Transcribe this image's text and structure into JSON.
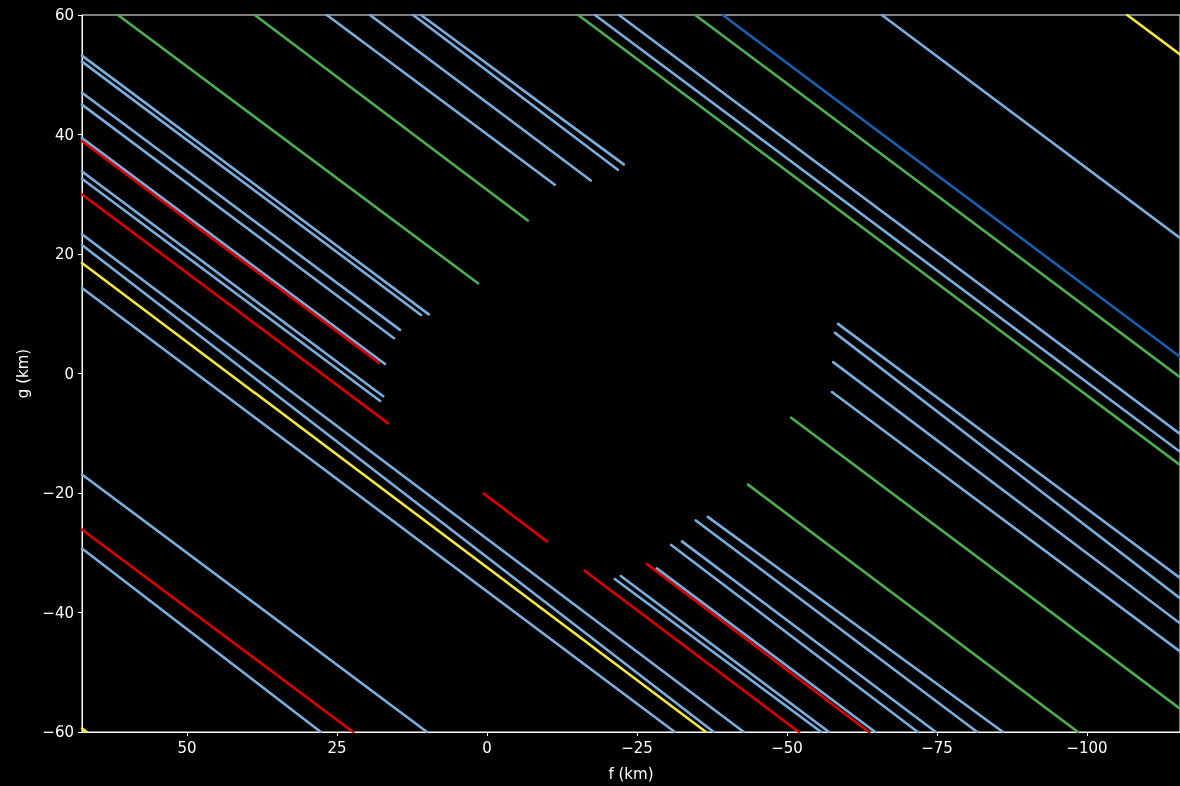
{
  "chart_data": {
    "type": "line",
    "xlabel": "f (km)",
    "ylabel": "g (km)",
    "xlim": [
      67.5,
      -115.5
    ],
    "ylim": [
      -60,
      60
    ],
    "xticks": [
      50,
      25,
      0,
      {
        "value": -25,
        "label": "−25"
      },
      {
        "value": -50,
        "label": "−50"
      },
      {
        "value": -75,
        "label": "−75"
      },
      {
        "value": -100,
        "label": "−100"
      }
    ],
    "yticks": [
      {
        "value": -60,
        "label": "−60"
      },
      {
        "value": -40,
        "label": "−40"
      },
      {
        "value": -20,
        "label": "−20"
      },
      0,
      20,
      40,
      60
    ],
    "series": [
      {
        "color": "#4caf50",
        "x": [
          61.5,
          1.5
        ],
        "values": [
          60,
          15.1
        ]
      },
      {
        "color": "#4caf50",
        "x": [
          38.7,
          -6.8
        ],
        "values": [
          60,
          25.6
        ]
      },
      {
        "color": "#7aaede",
        "x": [
          26.7,
          -11.3
        ],
        "values": [
          60,
          31.6
        ]
      },
      {
        "color": "#7aaede",
        "x": [
          19.5,
          -17.3
        ],
        "values": [
          60,
          32.3
        ]
      },
      {
        "color": "#7aaede",
        "x": [
          12.3,
          -21.8
        ],
        "values": [
          60,
          34.1
        ]
      },
      {
        "color": "#7aaede",
        "x": [
          11,
          -22.8
        ],
        "values": [
          60,
          35
        ]
      },
      {
        "color": "#4caf50",
        "x": [
          -15.2,
          -115.5
        ],
        "values": [
          60,
          -15.3
        ]
      },
      {
        "color": "#7aaede",
        "x": [
          -18,
          -115.5
        ],
        "values": [
          60,
          -13.1
        ]
      },
      {
        "color": "#7aaede",
        "x": [
          -22,
          -115.5
        ],
        "values": [
          60,
          -10.1
        ]
      },
      {
        "color": "#4caf50",
        "x": [
          -34.7,
          -115.5
        ],
        "values": [
          60,
          -0.6
        ]
      },
      {
        "color": "#1560b0",
        "x": [
          -39.3,
          -115.5
        ],
        "values": [
          60,
          2.8
        ]
      },
      {
        "color": "#7aaede",
        "x": [
          -65.8,
          -115.5
        ],
        "values": [
          60,
          22.7
        ]
      },
      {
        "color": "#f5e642",
        "x": [
          -106.7,
          -115.5
        ],
        "values": [
          60,
          53.4
        ]
      },
      {
        "color": "#7aaede",
        "x": [
          67.5,
          9.7
        ],
        "values": [
          53.2,
          9.9
        ]
      },
      {
        "color": "#7aaede",
        "x": [
          67.5,
          11
        ],
        "values": [
          52.2,
          9.8
        ]
      },
      {
        "color": "#7aaede",
        "x": [
          67.5,
          14.5
        ],
        "values": [
          47,
          7.3
        ]
      },
      {
        "color": "#7aaede",
        "x": [
          67.5,
          15.5
        ],
        "values": [
          45,
          5.9
        ]
      },
      {
        "color": "#7aaede",
        "x": [
          67.5,
          17
        ],
        "values": [
          39.4,
          1.6
        ]
      },
      {
        "color": "#e00000",
        "x": [
          67.5,
          18
        ],
        "values": [
          38.9,
          1.8
        ]
      },
      {
        "color": "#7aaede",
        "x": [
          67.5,
          17.3
        ],
        "values": [
          33.8,
          -3.8
        ]
      },
      {
        "color": "#7aaede",
        "x": [
          67.5,
          17.8
        ],
        "values": [
          32.6,
          -4.6
        ]
      },
      {
        "color": "#e00000",
        "x": [
          67.5,
          16.5
        ],
        "values": [
          30,
          -8.3
        ]
      },
      {
        "color": "#7aaede",
        "x": [
          67.5,
          -42.8
        ],
        "values": [
          23.3,
          -60
        ]
      },
      {
        "color": "#7aaede",
        "x": [
          67.5,
          -37.8
        ],
        "values": [
          21.5,
          -60
        ]
      },
      {
        "color": "#f5e642",
        "x": [
          67.5,
          -36.5
        ],
        "values": [
          18.5,
          -60
        ]
      },
      {
        "color": "#7aaede",
        "x": [
          67.5,
          -31.3
        ],
        "values": [
          14.3,
          -60
        ]
      },
      {
        "color": "#7aaede",
        "x": [
          67.5,
          10
        ],
        "values": [
          -16.9,
          -60
        ]
      },
      {
        "color": "#e00000",
        "x": [
          67.5,
          22.3
        ],
        "values": [
          -26.1,
          -60
        ]
      },
      {
        "color": "#7aaede",
        "x": [
          67.5,
          27.7
        ],
        "values": [
          -29.3,
          -60
        ]
      },
      {
        "color": "#f5e642",
        "x": [
          67.5,
          66.7
        ],
        "values": [
          -59.4,
          -60
        ]
      },
      {
        "color": "#e00000",
        "x": [
          0.5,
          -10
        ],
        "values": [
          -20.1,
          -28.1
        ]
      },
      {
        "color": "#e00000",
        "x": [
          -16.3,
          -52
        ],
        "values": [
          -33,
          -60
        ]
      },
      {
        "color": "#7aaede",
        "x": [
          -21.3,
          -55.7
        ],
        "values": [
          -34.4,
          -60
        ]
      },
      {
        "color": "#7aaede",
        "x": [
          -22.3,
          -57
        ],
        "values": [
          -33.9,
          -60
        ]
      },
      {
        "color": "#e00000",
        "x": [
          -26.7,
          -63.7
        ],
        "values": [
          -31.9,
          -60
        ]
      },
      {
        "color": "#7aaede",
        "x": [
          -28.3,
          -64.7
        ],
        "values": [
          -32.6,
          -60
        ]
      },
      {
        "color": "#7aaede",
        "x": [
          -30.7,
          -71.8
        ],
        "values": [
          -28.7,
          -60
        ]
      },
      {
        "color": "#7aaede",
        "x": [
          -32.5,
          -74.8
        ],
        "values": [
          -28.1,
          -60
        ]
      },
      {
        "color": "#7aaede",
        "x": [
          -34.8,
          -81.7
        ],
        "values": [
          -24.6,
          -60
        ]
      },
      {
        "color": "#7aaede",
        "x": [
          -36.8,
          -86
        ],
        "values": [
          -24,
          -60
        ]
      },
      {
        "color": "#4caf50",
        "x": [
          -43.5,
          -98.5
        ],
        "values": [
          -18.6,
          -60
        ]
      },
      {
        "color": "#4caf50",
        "x": [
          -50.7,
          -115.5
        ],
        "values": [
          -7.4,
          -56.1
        ]
      },
      {
        "color": "#7aaede",
        "x": [
          -57.5,
          -115.5
        ],
        "values": [
          -3.1,
          -46.5
        ]
      },
      {
        "color": "#7aaede",
        "x": [
          -57.7,
          -115.5
        ],
        "values": [
          1.9,
          -41.8
        ]
      },
      {
        "color": "#7aaede",
        "x": [
          -58,
          -115.5
        ],
        "values": [
          6.8,
          -37.6
        ]
      },
      {
        "color": "#7aaede",
        "x": [
          -58.5,
          -115.5
        ],
        "values": [
          8.3,
          -34.2
        ]
      }
    ]
  }
}
